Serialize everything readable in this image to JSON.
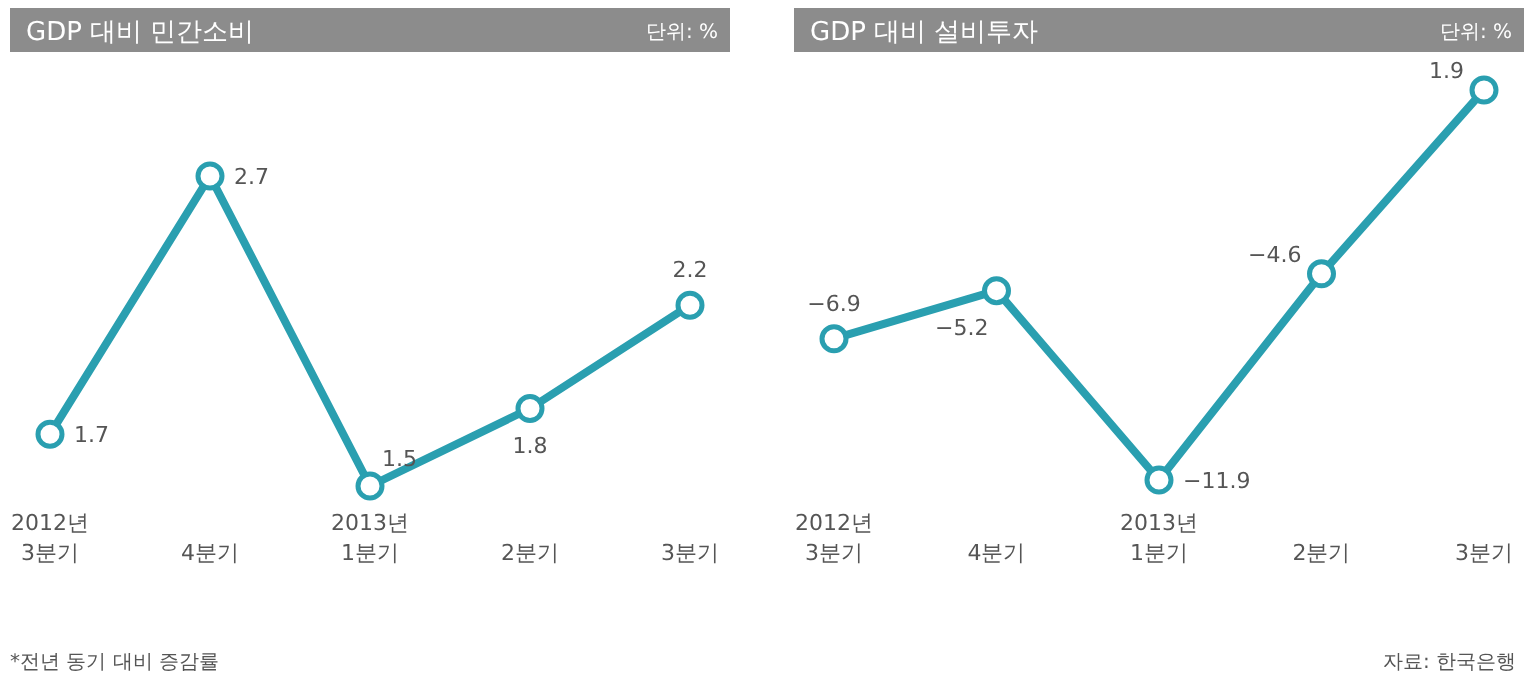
{
  "chart_data": [
    {
      "type": "line",
      "title": "GDP 대비 민간소비",
      "subtitle": "단위: %",
      "categories": [
        "2012년\n3분기",
        "4분기",
        "2013년\n1분기",
        "2분기",
        "3분기"
      ],
      "series": [
        {
          "color": "#2a9fb0",
          "values": [
            1.7,
            2.7,
            1.5,
            1.8,
            2.2
          ]
        }
      ],
      "marker": "circle",
      "data_labels": true,
      "annotations": [
        "*전년 동기 대비 증감률"
      ]
    },
    {
      "type": "line",
      "title": "GDP 대비 설비투자",
      "subtitle": "단위: %",
      "categories": [
        "2012년\n3분기",
        "4분기",
        "2013년\n1분기",
        "2분기",
        "3분기"
      ],
      "series": [
        {
          "color": "#2a9fb0",
          "values": [
            -6.9,
            -5.2,
            -11.9,
            -4.6,
            1.9
          ]
        }
      ],
      "marker": "circle",
      "data_labels": true,
      "annotations": [
        "자료: 한국은행"
      ]
    }
  ]
}
